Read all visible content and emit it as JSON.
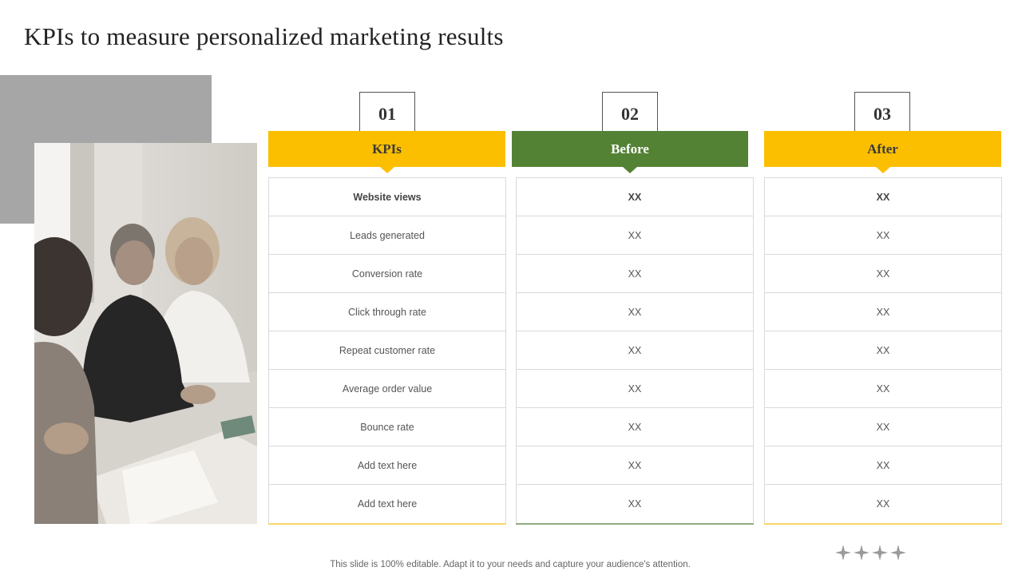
{
  "title": "KPIs to measure personalized marketing results",
  "columns": [
    {
      "number": "01",
      "header": "KPIs",
      "header_bg": "#fbbf00",
      "header_color": "#3a3a3a",
      "rows": [
        "Website views",
        "Leads generated",
        "Conversion  rate",
        "Click through rate",
        "Repeat customer rate",
        "Average  order value",
        "Bounce rate",
        "Add text here",
        "Add text here"
      ]
    },
    {
      "number": "02",
      "header": "Before",
      "header_bg": "#548235",
      "header_color": "#ffffff",
      "rows": [
        "XX",
        "XX",
        "XX",
        "XX",
        "XX",
        "XX",
        "XX",
        "XX",
        "XX"
      ]
    },
    {
      "number": "03",
      "header": "After",
      "header_bg": "#fbbf00",
      "header_color": "#3a3a3a",
      "rows": [
        "XX",
        "XX",
        "XX",
        "XX",
        "XX",
        "XX",
        "XX",
        "XX",
        "XX"
      ]
    }
  ],
  "footer": "This slide is 100% editable. Adapt it to your needs and capture your audience's attention.",
  "photo": {
    "icon": "business-meeting-photo"
  },
  "decoration": {
    "icon": "four-sparkle-stars-icon"
  }
}
